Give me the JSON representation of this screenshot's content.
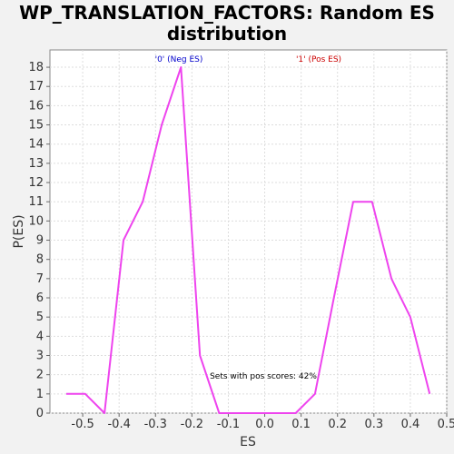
{
  "chart_data": {
    "type": "line",
    "title_line1": "WP_TRANSLATION_FACTORS: Random ES",
    "title_line2": "distribution",
    "xlabel": "ES",
    "ylabel": "P(ES)",
    "xlim": [
      -0.59,
      0.5
    ],
    "ylim": [
      0,
      18.9
    ],
    "xticks": [
      -0.5,
      -0.4,
      -0.3,
      -0.2,
      -0.1,
      0.0,
      0.1,
      0.2,
      0.3,
      0.4,
      0.5
    ],
    "xtick_labels": [
      "-0.5",
      "-0.4",
      "-0.3",
      "-0.2",
      "-0.1",
      "0.0",
      "0.1",
      "0.2",
      "0.3",
      "0.4",
      "0.5"
    ],
    "yticks": [
      0,
      1,
      2,
      3,
      4,
      5,
      6,
      7,
      8,
      9,
      10,
      11,
      12,
      13,
      14,
      15,
      16,
      17,
      18
    ],
    "grid": true,
    "line_color": "#ee44ee",
    "series": [
      {
        "x": [
          -0.545,
          -0.493,
          -0.44,
          -0.388,
          -0.335,
          -0.283,
          -0.23,
          -0.178,
          -0.125,
          -0.073,
          -0.02,
          0.033,
          0.085,
          0.138,
          0.19,
          0.243,
          0.295,
          0.348,
          0.4,
          0.453
        ],
        "y": [
          1,
          1,
          0,
          9,
          11,
          15,
          18,
          3,
          0,
          0,
          0,
          0,
          0,
          1,
          6,
          11,
          11,
          7,
          5,
          1
        ]
      }
    ],
    "annotations": {
      "neg_label": "'0' (Neg ES)",
      "neg_color": "#0000cc",
      "pos_label": "'1' (Pos ES)",
      "pos_color": "#cc0000",
      "score_text": "Sets with pos scores: 42%",
      "score_color": "#000000"
    }
  }
}
